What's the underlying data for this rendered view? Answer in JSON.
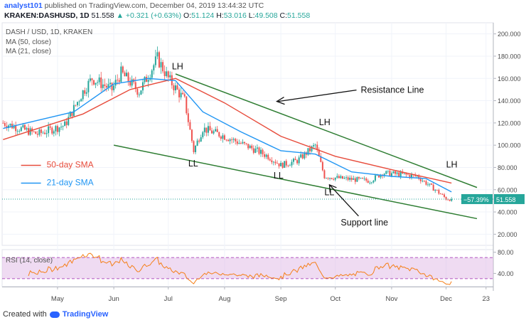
{
  "header": {
    "user": "analyst101",
    "published": "published on TradingView.com, December 04, 2019 13:44:32 UTC",
    "ticker": "KRAKEN:DASHUSD, 1D",
    "last": "51.558",
    "change_icon": "up-triangle-icon",
    "change": "+0.321 (+0.63%)",
    "o_label": "O:",
    "o": "51.124",
    "h_label": "H:",
    "h": "53.016",
    "l_label": "L:",
    "l": "49.508",
    "c_label": "C:",
    "c": "51.558"
  },
  "legend": {
    "symbol": "DASH / USD, 1D, KRAKEN",
    "ma50": "MA (50, close)",
    "ma21": "MA (21, close)",
    "rsi": "RSI (14, close)"
  },
  "colors": {
    "up": "#26a69a",
    "down": "#ef5350",
    "ma50": "#e74c3c",
    "ma21": "#2196f3",
    "trend": "#2e7d32",
    "rsi": "#f57f17",
    "rsi_band": "#e1bee7"
  },
  "footer": {
    "created": "Created with",
    "brand": "TradingView",
    "logo_icon": "tradingview-cloud-icon"
  },
  "chart_data": {
    "type": "candlestick",
    "x_ticks": [
      "May",
      "Jun",
      "Jul",
      "Aug",
      "Sep",
      "Oct",
      "Nov",
      "Dec",
      "23"
    ],
    "y_ticks": [
      20,
      40,
      60,
      80,
      100,
      120,
      140,
      160,
      180,
      200
    ],
    "ylim": [
      10,
      210
    ],
    "rsi_ticks": [
      40,
      80
    ],
    "rsi_ylim": [
      15,
      85
    ],
    "rsi_band": [
      30,
      70
    ],
    "last_price_badge": "51.558",
    "change_badge": "−57.39%",
    "key_closes": [
      {
        "date": "Apr 1",
        "close": 120
      },
      {
        "date": "Apr 20",
        "close": 110
      },
      {
        "date": "May 5",
        "close": 118
      },
      {
        "date": "May 15",
        "close": 148
      },
      {
        "date": "May 20",
        "close": 160
      },
      {
        "date": "May 31",
        "close": 150
      },
      {
        "date": "Jun 5",
        "close": 165
      },
      {
        "date": "Jun 15",
        "close": 148
      },
      {
        "date": "Jun 25",
        "close": 178
      },
      {
        "date": "Jul 1",
        "close": 160
      },
      {
        "date": "Jul 10",
        "close": 140
      },
      {
        "date": "Jul 15",
        "close": 95
      },
      {
        "date": "Jul 20",
        "close": 115
      },
      {
        "date": "Aug 1",
        "close": 108
      },
      {
        "date": "Aug 15",
        "close": 98
      },
      {
        "date": "Aug 25",
        "close": 90
      },
      {
        "date": "Sep 1",
        "close": 82
      },
      {
        "date": "Sep 10",
        "close": 86
      },
      {
        "date": "Sep 20",
        "close": 100
      },
      {
        "date": "Sep 25",
        "close": 72
      },
      {
        "date": "Oct 5",
        "close": 70
      },
      {
        "date": "Oct 20",
        "close": 68
      },
      {
        "date": "Oct 27",
        "close": 75
      },
      {
        "date": "Nov 5",
        "close": 74
      },
      {
        "date": "Nov 15",
        "close": 72
      },
      {
        "date": "Nov 25",
        "close": 60
      },
      {
        "date": "Dec 1",
        "close": 52
      },
      {
        "date": "Dec 4",
        "close": 51.558
      }
    ],
    "series": [
      {
        "name": "MA (50, close)",
        "points": [
          [
            "Apr 1",
            105
          ],
          [
            "May 15",
            128
          ],
          [
            "Jun 10",
            150
          ],
          [
            "Jul 5",
            160
          ],
          [
            "Aug 1",
            138
          ],
          [
            "Sep 1",
            108
          ],
          [
            "Oct 1",
            90
          ],
          [
            "Nov 1",
            78
          ],
          [
            "Dec 4",
            66
          ]
        ]
      },
      {
        "name": "MA (21, close)",
        "points": [
          [
            "Apr 1",
            115
          ],
          [
            "May 10",
            130
          ],
          [
            "Jun 1",
            155
          ],
          [
            "Jun 20",
            160
          ],
          [
            "Jul 5",
            158
          ],
          [
            "Jul 20",
            130
          ],
          [
            "Aug 10",
            112
          ],
          [
            "Sep 1",
            95
          ],
          [
            "Sep 20",
            92
          ],
          [
            "Oct 10",
            76
          ],
          [
            "Nov 1",
            72
          ],
          [
            "Nov 20",
            70
          ],
          [
            "Dec 4",
            58
          ]
        ]
      }
    ],
    "annotations": [
      {
        "text": "LH",
        "date": "Jul 3",
        "price": 168
      },
      {
        "text": "LL",
        "date": "Jul 12",
        "price": 81
      },
      {
        "text": "LL",
        "date": "Aug 28",
        "price": 70
      },
      {
        "text": "LH",
        "date": "Sep 22",
        "price": 118
      },
      {
        "text": "LL",
        "date": "Sep 25",
        "price": 55
      },
      {
        "text": "LH",
        "date": "Dec 1",
        "price": 80
      },
      {
        "text": "Resistance Line",
        "date": "Oct 15",
        "price": 147
      },
      {
        "text": "Support line",
        "date": "Oct 4",
        "price": 28
      },
      {
        "text": "50-day SMA",
        "date": "Apr 25",
        "price": 80
      },
      {
        "text": "21-day SMA",
        "date": "Apr 25",
        "price": 64
      }
    ],
    "trend_lines": [
      {
        "name": "Resistance Line",
        "from": [
          "Jul 5",
          164
        ],
        "to": [
          "Dec 18",
          62
        ]
      },
      {
        "name": "Support line",
        "from": [
          "Jun 1",
          100
        ],
        "to": [
          "Dec 18",
          34
        ]
      }
    ]
  }
}
